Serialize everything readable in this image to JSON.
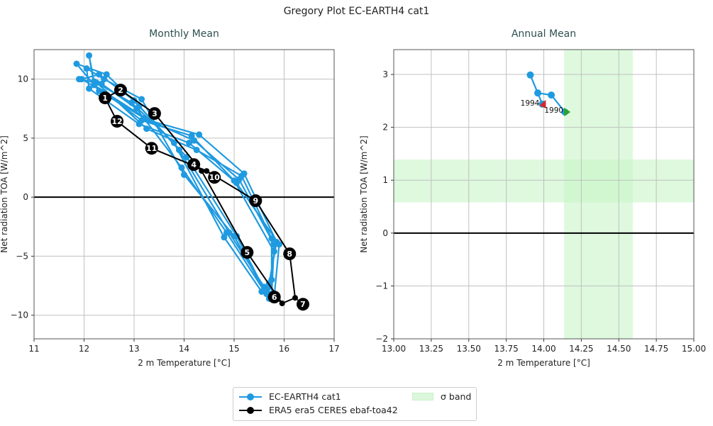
{
  "figure_title": "Gregory Plot EC-EARTH4 cat1",
  "colors": {
    "model": "#1f9ae0",
    "obs": "#000000",
    "band": "#c8f5c8",
    "grid": "#c0c0c0",
    "subtitle": "#2f4f4f",
    "start_marker": "#2ca02c",
    "end_marker": "#d62728"
  },
  "legend": {
    "placement": "bottom-center",
    "entries": [
      {
        "label": "EC-EARTH4 cat1",
        "kind": "line-marker",
        "color": "#1f9ae0"
      },
      {
        "label": "ERA5 era5 CERES ebaf-toa42",
        "kind": "line-marker",
        "color": "#000000"
      },
      {
        "label": "σ band",
        "kind": "patch",
        "color": "#c8f5c8"
      }
    ]
  },
  "chart_data": [
    {
      "type": "line",
      "title": "Monthly Mean",
      "xlabel": "2 m Temperature [°C]",
      "ylabel": "Net radiation TOA [W/m^2]",
      "xlim": [
        11,
        17
      ],
      "ylim": [
        -12,
        12.5
      ],
      "xticks": [
        11,
        12,
        13,
        14,
        15,
        16,
        17
      ],
      "yticks": [
        -10,
        -5,
        0,
        5,
        10
      ],
      "xtick_labels": [
        "11",
        "12",
        "13",
        "14",
        "15",
        "16",
        "17"
      ],
      "ytick_labels": [
        "−10",
        "−5",
        "0",
        "5",
        "10"
      ],
      "grid": true,
      "zero_line": 0,
      "series": [
        {
          "name": "EC-EARTH4 cat1",
          "color": "#1f9ae0",
          "x": [
            11.95,
            12.3,
            13.0,
            13.9,
            14.9,
            15.6,
            15.75,
            15.8,
            15.1,
            14.2,
            13.2,
            12.3,
            11.85,
            12.45,
            13.1,
            14.05,
            15.05,
            15.65,
            15.7,
            15.85,
            15.2,
            14.3,
            13.3,
            12.2,
            12.1,
            12.2,
            12.95,
            13.8,
            14.8,
            15.55,
            15.8,
            15.9,
            15.05,
            14.1,
            13.1,
            12.1,
            12.05,
            12.4,
            13.15,
            14.0,
            15.0,
            15.6,
            15.75,
            15.75,
            15.15,
            14.25,
            13.25,
            12.25,
            11.9,
            12.35,
            13.05,
            13.95,
            14.85,
            15.7,
            15.7,
            15.8,
            15.0,
            14.15,
            13.15,
            12.4
          ],
          "y": [
            10.0,
            10.4,
            8.2,
            4.0,
            -3.0,
            -7.6,
            -8.2,
            -4.0,
            1.5,
            4.8,
            6.7,
            9.0,
            11.3,
            10.4,
            7.7,
            3.4,
            -3.3,
            -8.2,
            -7.3,
            -3.8,
            2.0,
            5.3,
            6.5,
            9.5,
            12.0,
            9.8,
            8.0,
            4.6,
            -3.4,
            -8.0,
            -8.5,
            -4.0,
            1.2,
            4.6,
            6.2,
            9.2,
            10.9,
            10.0,
            8.3,
            1.9,
            -3.3,
            -7.9,
            -7.0,
            -3.5,
            1.8,
            4.0,
            5.8,
            9.7,
            10.0,
            9.6,
            7.5,
            2.5,
            -3.0,
            -8.6,
            -7.6,
            -4.6,
            1.4,
            5.2,
            6.5,
            8.9
          ]
        },
        {
          "name": "ERA5 era5 CERES ebaf-toa42",
          "color": "#000000",
          "months": [
            "1",
            "2",
            "3",
            "4",
            "5",
            "6",
            "7",
            "8",
            "9",
            "10",
            "11",
            "12"
          ],
          "x": [
            12.42,
            12.73,
            13.41,
            14.35,
            15.26,
            15.96,
            16.22,
            16.11,
            15.43,
            14.45,
            13.35,
            12.66
          ],
          "y": [
            8.41,
            9.07,
            7.09,
            2.22,
            -4.68,
            -9.0,
            -8.53,
            -4.8,
            -0.3,
            2.22,
            4.14,
            6.43
          ]
        }
      ]
    },
    {
      "type": "line",
      "title": "Annual Mean",
      "xlabel": "2 m Temperature [°C]",
      "ylabel": "Net radiation TOA [W/m^2]",
      "xlim": [
        13.0,
        15.0
      ],
      "ylim": [
        -2,
        3.47
      ],
      "xticks": [
        13.0,
        13.25,
        13.5,
        13.75,
        14.0,
        14.25,
        14.5,
        14.75,
        15.0
      ],
      "yticks": [
        -2,
        -1,
        0,
        1,
        2,
        3
      ],
      "xtick_labels": [
        "13.00",
        "13.25",
        "13.50",
        "13.75",
        "14.00",
        "14.25",
        "14.50",
        "14.75",
        "15.00"
      ],
      "ytick_labels": [
        "−2",
        "−1",
        "0",
        "1",
        "2",
        "3"
      ],
      "grid": true,
      "zero_line": 0,
      "sigma_band": {
        "x": [
          14.135,
          14.593
        ],
        "y": [
          0.58,
          1.39
        ]
      },
      "series": [
        {
          "name": "EC-EARTH4 cat1",
          "color": "#1f9ae0",
          "years": [
            "1990",
            "1991",
            "1992",
            "1993",
            "1994"
          ],
          "x": [
            14.14,
            14.05,
            13.96,
            13.91,
            13.99
          ],
          "y": [
            2.29,
            2.61,
            2.65,
            2.99,
            2.44
          ],
          "labels": {
            "first": "1990",
            "last": "1994"
          }
        }
      ]
    }
  ]
}
